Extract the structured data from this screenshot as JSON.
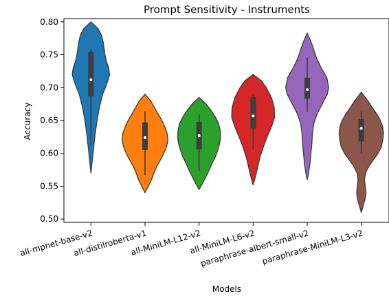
{
  "chart_data": {
    "type": "violin",
    "title": "Prompt Sensitivity - Instruments",
    "xlabel": "Models",
    "ylabel": "Accuracy",
    "ylim": [
      0.495,
      0.805
    ],
    "yticks": [
      "0.50",
      "0.55",
      "0.60",
      "0.65",
      "0.70",
      "0.75",
      "0.80"
    ],
    "grid": false,
    "categories": [
      "all-mpnet-base-v2",
      "all-distilroberta-v1",
      "all-MiniLM-L12-v2",
      "all-MiniLM-L6-v2",
      "paraphrase-albert-small-v2",
      "paraphrase-MiniLM-L3-v2"
    ],
    "colors": [
      "#1f77b4",
      "#ff7f0e",
      "#2ca02c",
      "#d62728",
      "#9467bd",
      "#8c564b"
    ],
    "violins": [
      {
        "range": [
          0.57,
          0.8
        ],
        "q1": 0.687,
        "median": 0.712,
        "q3": 0.754,
        "whisker_low": 0.612,
        "whisker_high": 0.758,
        "profile": [
          [
            0.57,
            0.0
          ],
          [
            0.59,
            0.06
          ],
          [
            0.61,
            0.12
          ],
          [
            0.63,
            0.18
          ],
          [
            0.65,
            0.26
          ],
          [
            0.67,
            0.36
          ],
          [
            0.69,
            0.5
          ],
          [
            0.7,
            0.62
          ],
          [
            0.71,
            0.72
          ],
          [
            0.72,
            0.8
          ],
          [
            0.73,
            0.76
          ],
          [
            0.74,
            0.66
          ],
          [
            0.75,
            0.6
          ],
          [
            0.76,
            0.56
          ],
          [
            0.77,
            0.52
          ],
          [
            0.78,
            0.45
          ],
          [
            0.79,
            0.3
          ],
          [
            0.8,
            0.0
          ]
        ]
      },
      {
        "range": [
          0.54,
          0.69
        ],
        "q1": 0.605,
        "median": 0.624,
        "q3": 0.647,
        "whisker_low": 0.567,
        "whisker_high": 0.664,
        "profile": [
          [
            0.54,
            0.0
          ],
          [
            0.55,
            0.14
          ],
          [
            0.56,
            0.28
          ],
          [
            0.57,
            0.38
          ],
          [
            0.58,
            0.5
          ],
          [
            0.59,
            0.66
          ],
          [
            0.6,
            0.8
          ],
          [
            0.61,
            0.92
          ],
          [
            0.62,
            0.98
          ],
          [
            0.63,
            0.95
          ],
          [
            0.64,
            0.85
          ],
          [
            0.65,
            0.72
          ],
          [
            0.66,
            0.56
          ],
          [
            0.67,
            0.4
          ],
          [
            0.68,
            0.24
          ],
          [
            0.69,
            0.0
          ]
        ]
      },
      {
        "range": [
          0.545,
          0.685
        ],
        "q1": 0.606,
        "median": 0.627,
        "q3": 0.648,
        "whisker_low": 0.573,
        "whisker_high": 0.659,
        "profile": [
          [
            0.545,
            0.0
          ],
          [
            0.555,
            0.16
          ],
          [
            0.565,
            0.3
          ],
          [
            0.575,
            0.44
          ],
          [
            0.585,
            0.56
          ],
          [
            0.595,
            0.7
          ],
          [
            0.605,
            0.8
          ],
          [
            0.615,
            0.88
          ],
          [
            0.625,
            0.92
          ],
          [
            0.635,
            0.9
          ],
          [
            0.645,
            0.84
          ],
          [
            0.655,
            0.7
          ],
          [
            0.665,
            0.52
          ],
          [
            0.675,
            0.3
          ],
          [
            0.685,
            0.0
          ]
        ]
      },
      {
        "range": [
          0.552,
          0.72
        ],
        "q1": 0.638,
        "median": 0.657,
        "q3": 0.686,
        "whisker_low": 0.607,
        "whisker_high": 0.69,
        "profile": [
          [
            0.552,
            0.0
          ],
          [
            0.565,
            0.1
          ],
          [
            0.58,
            0.2
          ],
          [
            0.595,
            0.3
          ],
          [
            0.61,
            0.44
          ],
          [
            0.625,
            0.6
          ],
          [
            0.64,
            0.78
          ],
          [
            0.655,
            0.92
          ],
          [
            0.67,
            0.9
          ],
          [
            0.685,
            0.78
          ],
          [
            0.7,
            0.56
          ],
          [
            0.71,
            0.36
          ],
          [
            0.72,
            0.0
          ]
        ]
      },
      {
        "range": [
          0.56,
          0.783
        ],
        "q1": 0.683,
        "median": 0.697,
        "q3": 0.715,
        "whisker_low": 0.663,
        "whisker_high": 0.746,
        "profile": [
          [
            0.56,
            0.0
          ],
          [
            0.57,
            0.06
          ],
          [
            0.585,
            0.12
          ],
          [
            0.6,
            0.16
          ],
          [
            0.615,
            0.2
          ],
          [
            0.63,
            0.22
          ],
          [
            0.645,
            0.28
          ],
          [
            0.66,
            0.42
          ],
          [
            0.675,
            0.64
          ],
          [
            0.69,
            0.86
          ],
          [
            0.7,
            0.92
          ],
          [
            0.715,
            0.84
          ],
          [
            0.73,
            0.6
          ],
          [
            0.745,
            0.4
          ],
          [
            0.76,
            0.26
          ],
          [
            0.77,
            0.16
          ],
          [
            0.783,
            0.0
          ]
        ]
      },
      {
        "range": [
          0.51,
          0.693
        ],
        "q1": 0.618,
        "median": 0.638,
        "q3": 0.652,
        "whisker_low": 0.6,
        "whisker_high": 0.664,
        "profile": [
          [
            0.51,
            0.0
          ],
          [
            0.52,
            0.08
          ],
          [
            0.53,
            0.16
          ],
          [
            0.54,
            0.2
          ],
          [
            0.55,
            0.17
          ],
          [
            0.56,
            0.14
          ],
          [
            0.57,
            0.18
          ],
          [
            0.58,
            0.32
          ],
          [
            0.59,
            0.52
          ],
          [
            0.6,
            0.72
          ],
          [
            0.61,
            0.86
          ],
          [
            0.62,
            0.92
          ],
          [
            0.63,
            0.95
          ],
          [
            0.64,
            0.92
          ],
          [
            0.65,
            0.82
          ],
          [
            0.66,
            0.66
          ],
          [
            0.67,
            0.46
          ],
          [
            0.68,
            0.28
          ],
          [
            0.693,
            0.0
          ]
        ]
      }
    ]
  }
}
